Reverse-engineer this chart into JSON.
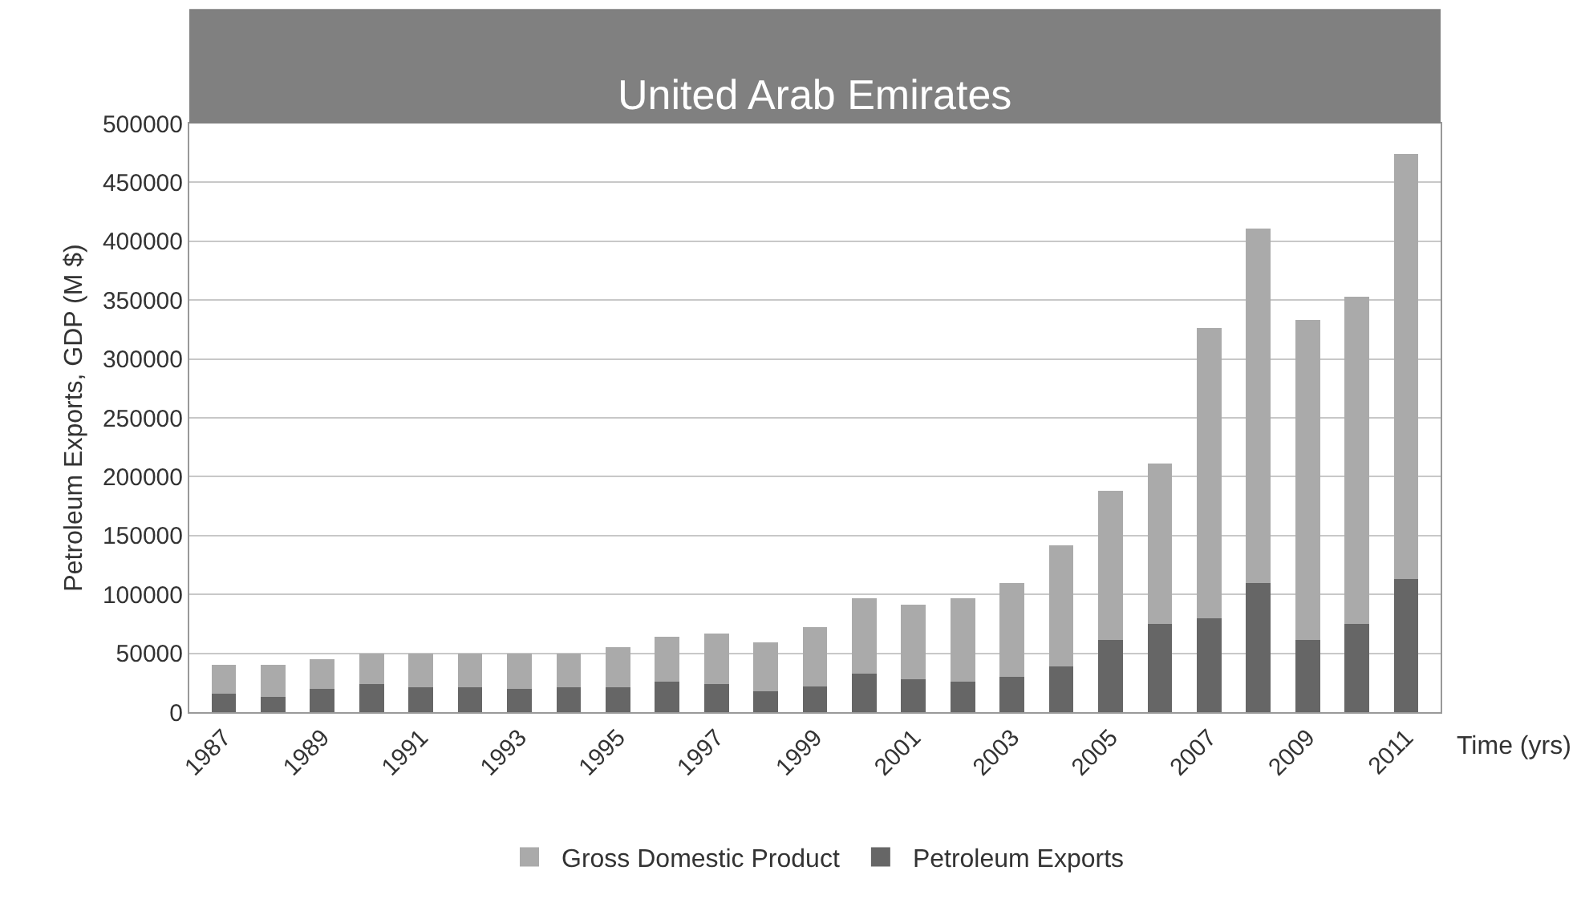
{
  "chart_data": {
    "type": "bar",
    "title": "United Arab Emirates",
    "xlabel": "Time (yrs)",
    "ylabel": "Petroleum Exports, GDP (M $)",
    "categories": [
      "1987",
      null,
      "1989",
      null,
      "1991",
      null,
      "1993",
      null,
      "1995",
      null,
      "1997",
      null,
      "1999",
      null,
      "2001",
      null,
      "2003",
      null,
      "2005",
      null,
      "2007",
      null,
      "2009",
      null,
      "2011"
    ],
    "stacked": true,
    "series": [
      {
        "name": "Petroleum Exports",
        "color": "#666666",
        "values": [
          16000,
          13000,
          20000,
          24000,
          21000,
          21000,
          20000,
          21000,
          21000,
          26000,
          24000,
          18000,
          22000,
          33000,
          28000,
          26000,
          30000,
          39000,
          61000,
          75000,
          80000,
          110000,
          61000,
          75000,
          113000
        ]
      },
      {
        "name": "Gross Domestic Product",
        "color": "#aaaaaa",
        "values": [
          24000,
          27000,
          25000,
          26000,
          29000,
          29000,
          30000,
          29000,
          34000,
          38000,
          43000,
          41000,
          50000,
          64000,
          63000,
          71000,
          80000,
          103000,
          127000,
          136000,
          246000,
          301000,
          272000,
          278000,
          361000
        ]
      }
    ],
    "ylim": [
      0,
      500000
    ],
    "yticks": [
      0,
      50000,
      100000,
      150000,
      200000,
      250000,
      300000,
      350000,
      400000,
      450000,
      500000
    ],
    "grid": "y",
    "legend": "bottom"
  }
}
